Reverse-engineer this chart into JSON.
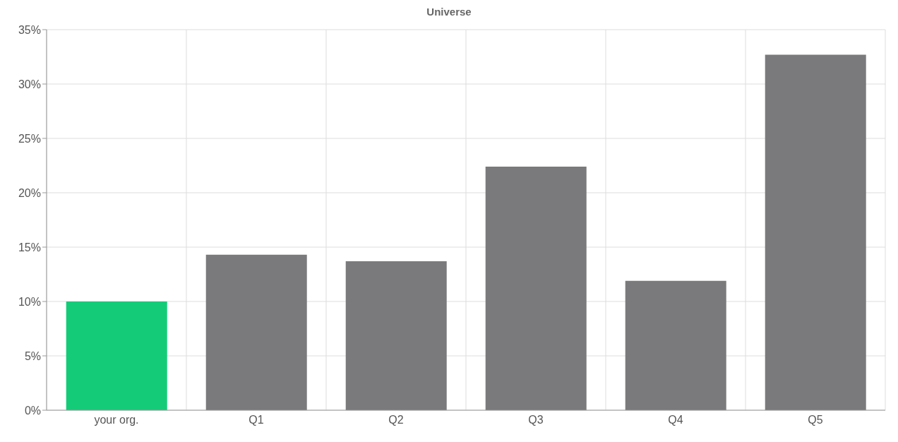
{
  "chart_data": {
    "type": "bar",
    "title": "Universe",
    "categories": [
      "your org.",
      "Q1",
      "Q2",
      "Q3",
      "Q4",
      "Q5"
    ],
    "values": [
      10,
      14.3,
      13.7,
      22.4,
      11.9,
      32.7
    ],
    "colors": [
      "#14cc78",
      "#7a7a7d",
      "#7a7a7d",
      "#7a7a7d",
      "#7a7a7d",
      "#7a7a7d"
    ],
    "ylim": [
      0,
      35
    ],
    "yticks": [
      {
        "value": 0,
        "label": "0%"
      },
      {
        "value": 5,
        "label": "5%"
      },
      {
        "value": 10,
        "label": "10%"
      },
      {
        "value": 15,
        "label": "15%"
      },
      {
        "value": 20,
        "label": "20%"
      },
      {
        "value": 25,
        "label": "25%"
      },
      {
        "value": 30,
        "label": "30%"
      },
      {
        "value": 35,
        "label": "35%"
      }
    ],
    "grid": true,
    "legend": false
  }
}
